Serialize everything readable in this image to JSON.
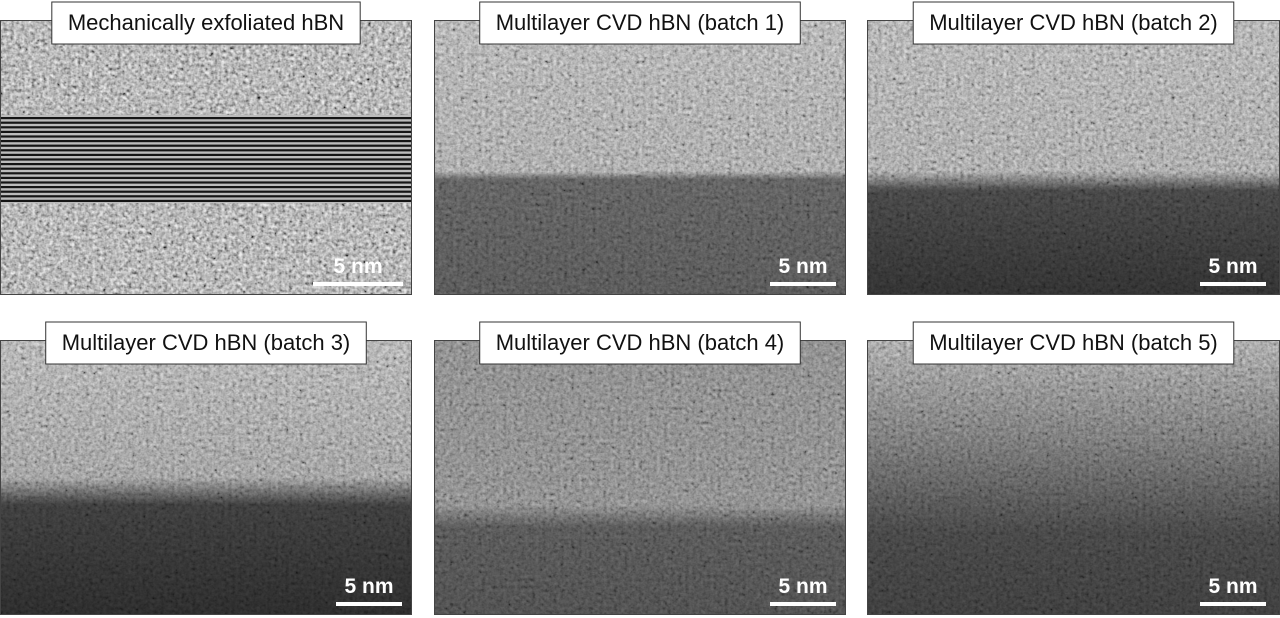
{
  "panels": [
    {
      "title": "Mechanically exfoliated hBN",
      "scale_label": "5 nm"
    },
    {
      "title": "Multilayer CVD hBN (batch 1)",
      "scale_label": "5 nm"
    },
    {
      "title": "Multilayer CVD hBN (batch 2)",
      "scale_label": "5 nm"
    },
    {
      "title": "Multilayer CVD hBN (batch 3)",
      "scale_label": "5 nm"
    },
    {
      "title": "Multilayer CVD hBN (batch 4)",
      "scale_label": "5 nm"
    },
    {
      "title": "Multilayer CVD hBN (batch 5)",
      "scale_label": "5 nm"
    }
  ]
}
